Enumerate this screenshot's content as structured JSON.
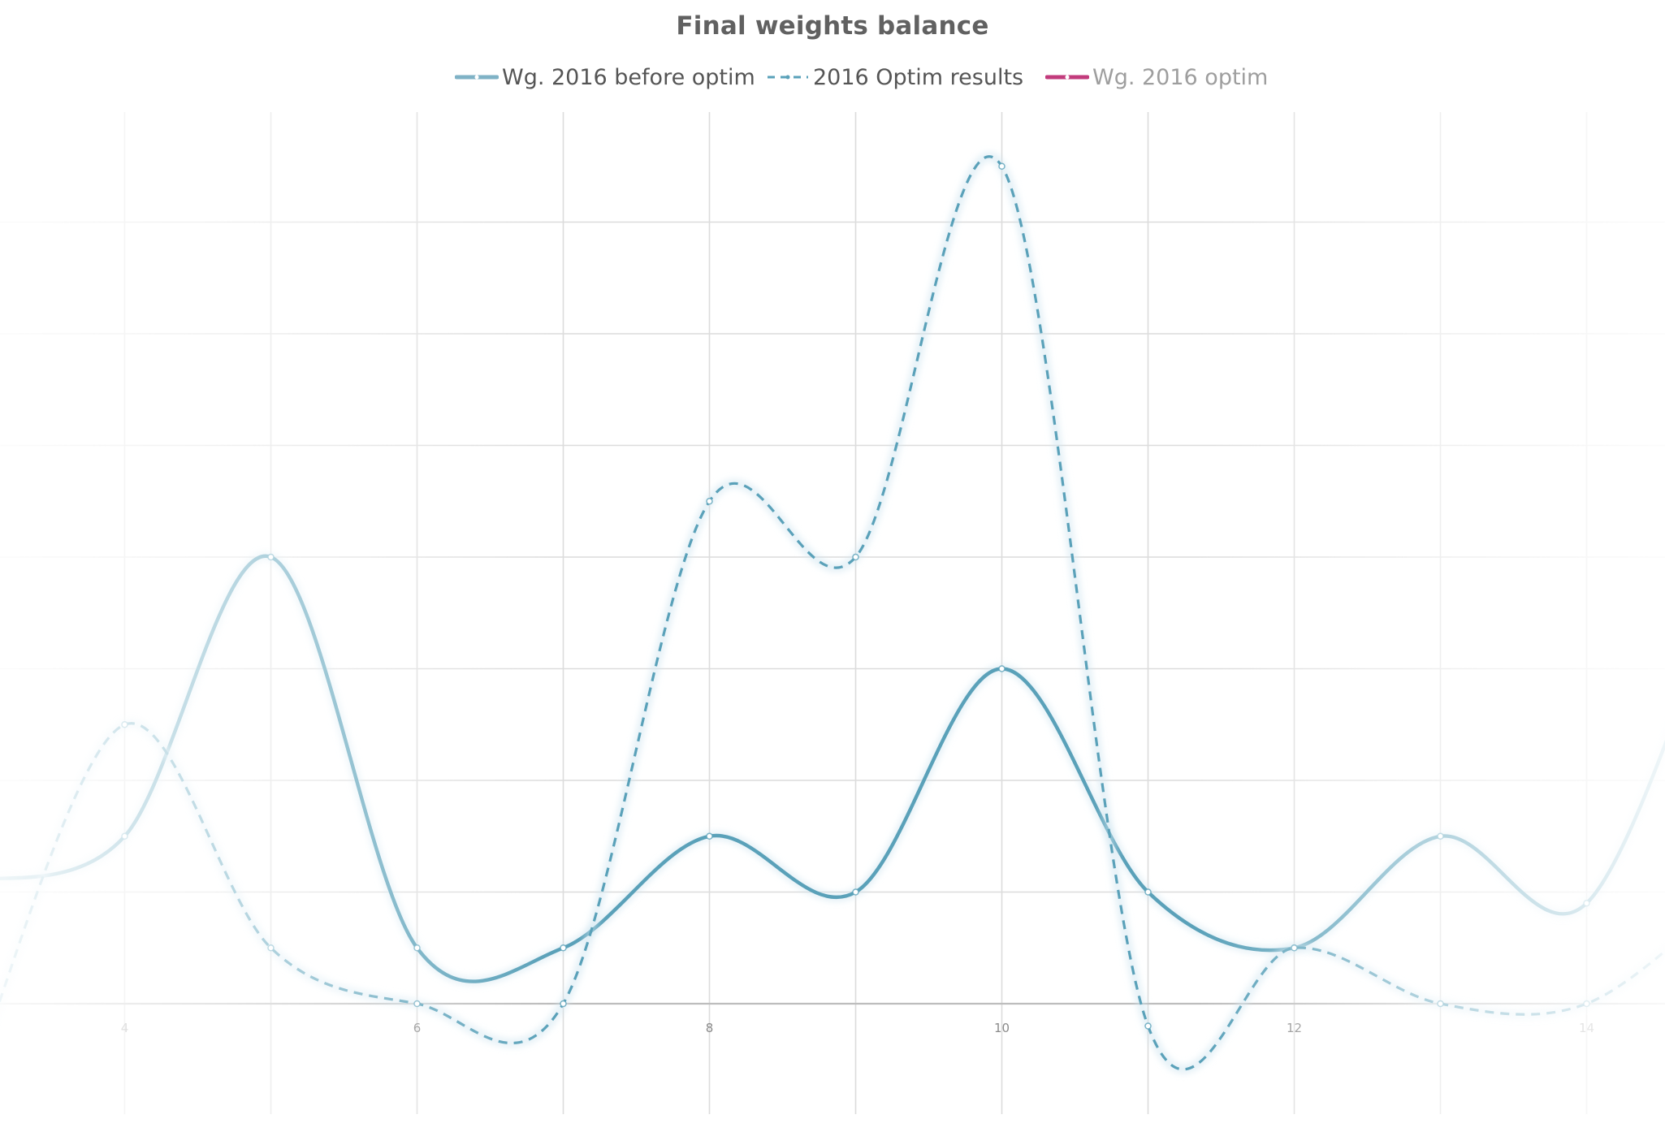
{
  "chart_data": {
    "type": "line",
    "title": "Final weights balance",
    "xlabel": "",
    "ylabel": "",
    "xlim": [
      3.1,
      14.8
    ],
    "ylim": [
      0,
      8
    ],
    "x_ticks": [
      4,
      6,
      8,
      10,
      12,
      14
    ],
    "grid": true,
    "legend_position": "top-center",
    "smooth": true,
    "series": [
      {
        "name": "Wg. 2016 before optim",
        "color": "#5aa1b9",
        "style": "solid",
        "x": [
          3,
          4,
          5,
          6,
          7,
          8,
          9,
          10,
          11,
          12,
          13,
          14,
          15
        ],
        "y": [
          1.1,
          1.5,
          4,
          0.5,
          0.5,
          1.5,
          1,
          3,
          1,
          0.5,
          1.5,
          0.9,
          4
        ]
      },
      {
        "name": "2016 Optim results",
        "color": "#5aa1b9",
        "style": "dashed",
        "x": [
          3,
          4,
          5,
          6,
          7,
          8,
          9,
          10,
          11,
          12,
          13,
          14,
          15
        ],
        "y": [
          -0.5,
          2.5,
          0.5,
          0,
          0,
          4.5,
          4,
          7.5,
          -0.2,
          0.5,
          0,
          0,
          1
        ],
        "endpoint_segment": {
          "x": [
            14,
            15
          ],
          "y": [
            0,
            1
          ]
        }
      },
      {
        "name": "Wg. 2016 optim",
        "color": "#c23b7c",
        "style": "solid",
        "x": [],
        "y": [],
        "hidden": true
      }
    ]
  },
  "legend": [
    {
      "label": "Wg. 2016 before optim",
      "swatch_color": "#7fb2c6",
      "swatch_style": "solid"
    },
    {
      "label": "2016 Optim results",
      "swatch_color": "#5aa1b9",
      "swatch_style": "dashed"
    },
    {
      "label": "Wg. 2016 optim",
      "swatch_color": "#c23b7c",
      "swatch_style": "solid"
    }
  ],
  "colors": {
    "title": "#616161",
    "grid": "#dcdcdc",
    "baseline": "#bdbdbd",
    "tick_label": "#8a8a8a"
  }
}
